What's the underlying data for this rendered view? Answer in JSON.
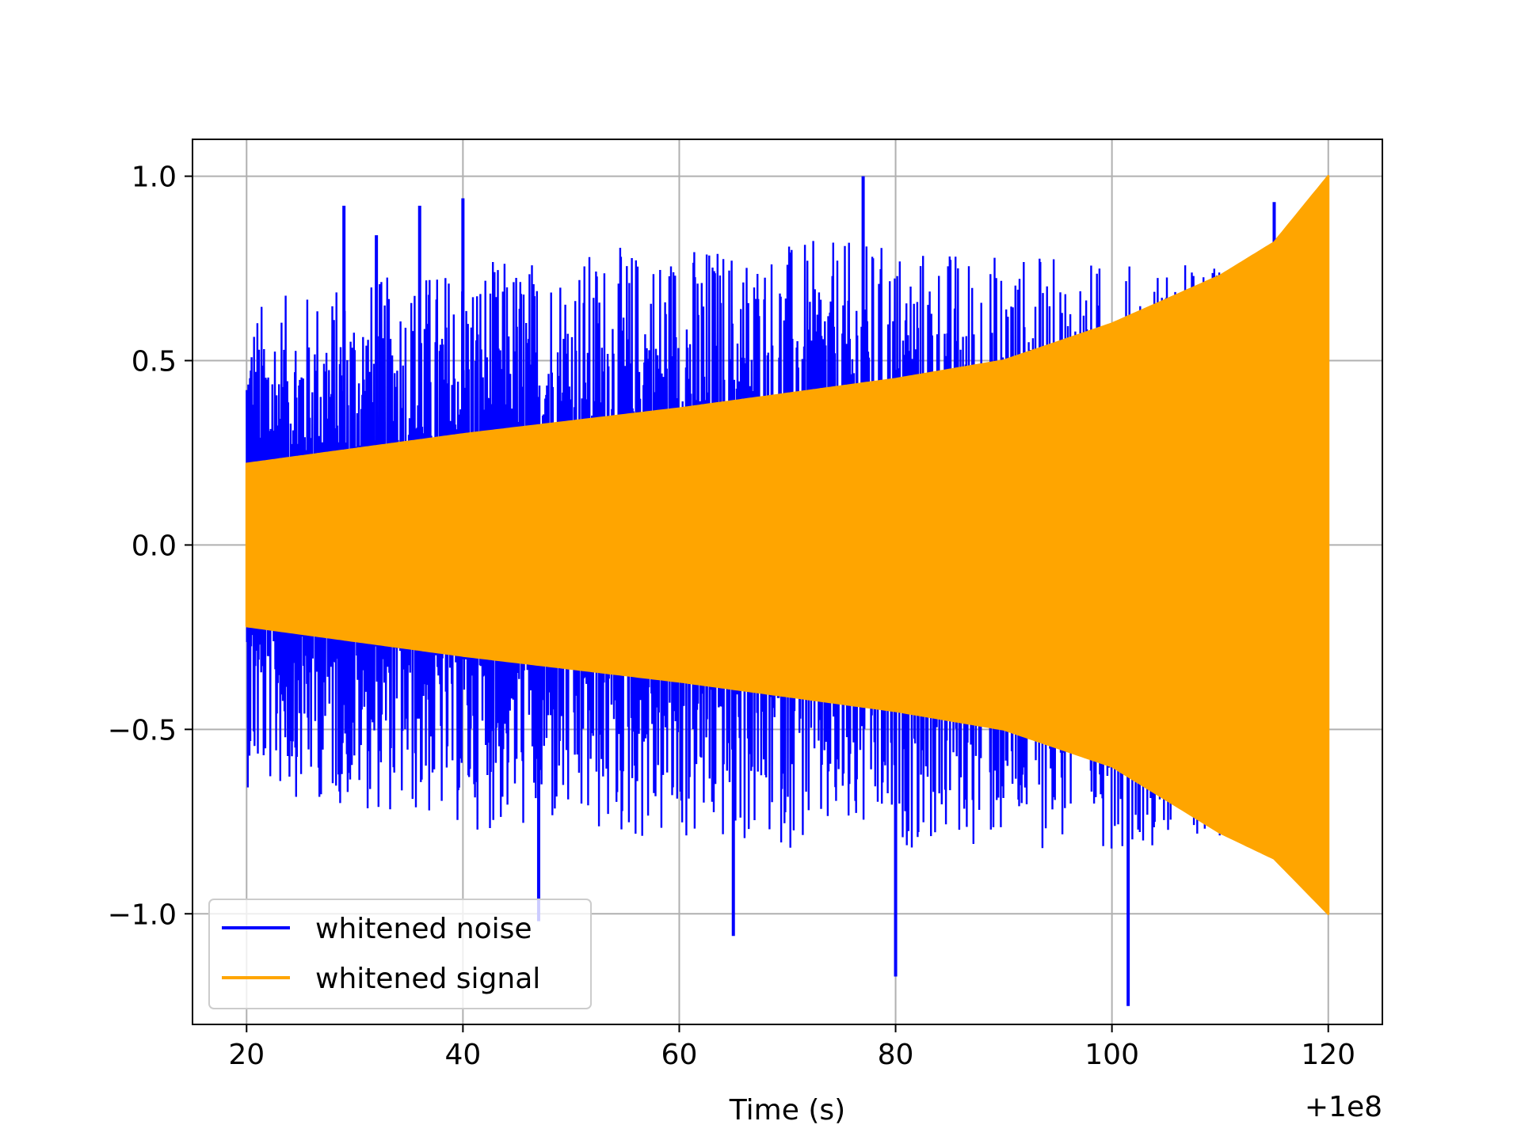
{
  "chart_data": {
    "type": "line",
    "title": "",
    "xlabel": "Time (s)",
    "ylabel": "",
    "x_offset_label": "+1e8",
    "xlim": [
      15,
      125
    ],
    "ylim": [
      -1.3,
      1.1
    ],
    "x_ticks": [
      20,
      40,
      60,
      80,
      100,
      120
    ],
    "x_tick_labels": [
      "20",
      "40",
      "60",
      "80",
      "100",
      "120"
    ],
    "y_ticks": [
      -1.0,
      -0.5,
      0.0,
      0.5,
      1.0
    ],
    "y_tick_labels": [
      "−1.0",
      "−0.5",
      "0.0",
      "0.5",
      "1.0"
    ],
    "grid": true,
    "legend_position": "lower-left",
    "series": [
      {
        "name": "whitened noise",
        "color": "#0000ff",
        "x_range": [
          20,
          120
        ],
        "envelope": {
          "x": [
            20,
            40,
            60,
            80,
            100,
            120
          ],
          "upper": [
            0.6,
            0.7,
            0.75,
            0.75,
            0.7,
            0.7
          ],
          "lower": [
            -0.6,
            -0.7,
            -0.75,
            -0.75,
            -0.75,
            -0.7
          ]
        },
        "peaks": [
          {
            "x": 29,
            "y": 0.92
          },
          {
            "x": 32,
            "y": 0.84
          },
          {
            "x": 36,
            "y": 0.92
          },
          {
            "x": 40,
            "y": 0.94
          },
          {
            "x": 47,
            "y": -1.02
          },
          {
            "x": 65,
            "y": -1.06
          },
          {
            "x": 77,
            "y": 1.0
          },
          {
            "x": 80,
            "y": -1.17
          },
          {
            "x": 101.5,
            "y": -1.25
          },
          {
            "x": 115,
            "y": 0.93
          }
        ]
      },
      {
        "name": "whitened signal",
        "color": "#ffa500",
        "envelope": {
          "x": [
            20,
            40,
            60,
            80,
            90,
            100,
            110,
            115,
            120
          ],
          "upper": [
            0.22,
            0.3,
            0.37,
            0.45,
            0.5,
            0.6,
            0.73,
            0.82,
            1.0
          ],
          "lower": [
            -0.22,
            -0.3,
            -0.37,
            -0.45,
            -0.5,
            -0.6,
            -0.78,
            -0.85,
            -1.0
          ]
        }
      }
    ]
  }
}
